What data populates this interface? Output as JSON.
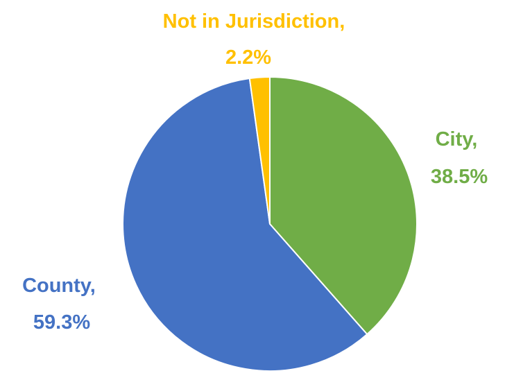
{
  "chart_data": {
    "type": "pie",
    "start_angle_deg": 0,
    "direction": "clockwise",
    "slices": [
      {
        "name": "City",
        "value": 38.5,
        "display": "38.5%",
        "color": "#70AD47"
      },
      {
        "name": "County",
        "value": 59.3,
        "display": "59.3%",
        "color": "#4472C4"
      },
      {
        "name": "Not in Jurisdiction",
        "value": 2.2,
        "display": "2.2%",
        "color": "#FFC000"
      }
    ]
  }
}
